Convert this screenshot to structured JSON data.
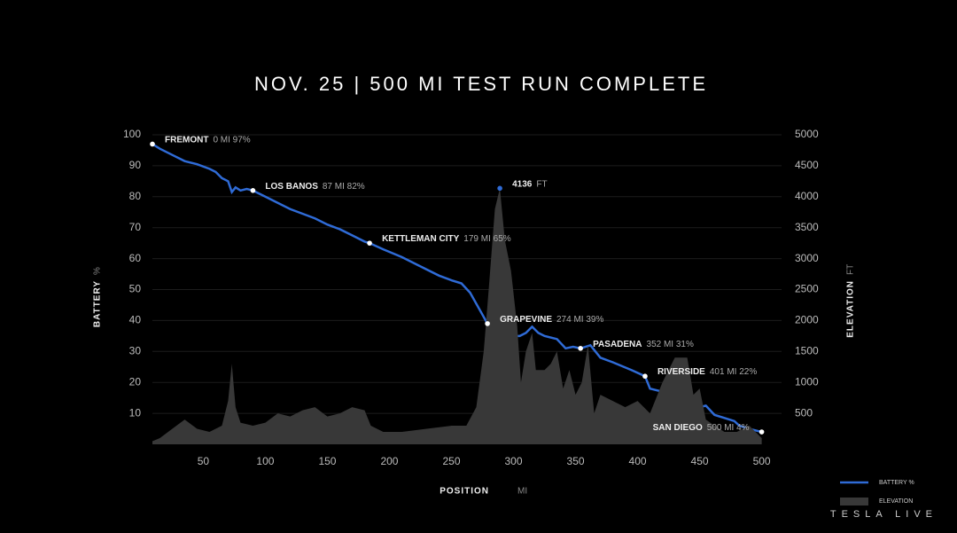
{
  "chart_data": {
    "type": "line",
    "title": "NOV. 25 | 500 MI TEST RUN COMPLETE",
    "xlabel": "POSITION",
    "xunit": "MI",
    "ylabel": "BATTERY",
    "yunit": "%",
    "y2label": "ELEVATION",
    "y2unit": "FT",
    "xlim": [
      9,
      516
    ],
    "xticks": [
      50,
      100,
      150,
      200,
      250,
      300,
      350,
      400,
      450,
      500
    ],
    "ylim": [
      0,
      100
    ],
    "yticks": [
      10,
      20,
      30,
      40,
      50,
      60,
      70,
      80,
      90,
      100
    ],
    "y2lim": [
      0,
      5000
    ],
    "y2ticks": [
      500,
      1000,
      1500,
      2000,
      2500,
      3000,
      3500,
      4000,
      4500,
      5000
    ],
    "grid": true,
    "series": [
      {
        "name": "BATTERY %",
        "color": "#2f6bd6",
        "kind": "line",
        "x": [
          9,
          15,
          25,
          35,
          45,
          55,
          60,
          65,
          70,
          73,
          76,
          80,
          85,
          90,
          100,
          110,
          120,
          130,
          140,
          150,
          160,
          170,
          180,
          184,
          195,
          210,
          225,
          240,
          250,
          258,
          265,
          272,
          279,
          283,
          286,
          290,
          295,
          305,
          310,
          315,
          320,
          325,
          335,
          342,
          348,
          354,
          362,
          370,
          380,
          395,
          406,
          410,
          425,
          432,
          440,
          445,
          455,
          462,
          470,
          478,
          482,
          490,
          500
        ],
        "values": [
          97,
          95.5,
          93.5,
          91.5,
          90.5,
          89,
          88,
          86,
          85,
          81.5,
          83,
          82,
          82.5,
          82,
          80,
          78,
          76,
          74.5,
          73,
          71,
          69.5,
          67.5,
          65.5,
          65,
          63,
          60.5,
          57.5,
          54.5,
          53,
          52,
          49,
          44,
          39,
          35,
          32.5,
          34,
          35,
          35,
          36,
          38,
          36,
          35,
          34,
          31,
          31.5,
          31,
          32,
          28,
          26.5,
          24,
          22,
          18,
          16.5,
          14.5,
          14.5,
          11.5,
          12.5,
          9.5,
          8.5,
          7.5,
          6,
          5,
          4
        ]
      },
      {
        "name": "ELEVATION",
        "color": "#383838",
        "kind": "area",
        "axis": "y2",
        "x": [
          9,
          15,
          25,
          35,
          45,
          55,
          65,
          70,
          73,
          76,
          80,
          90,
          100,
          110,
          120,
          130,
          140,
          150,
          160,
          170,
          180,
          185,
          195,
          210,
          230,
          250,
          262,
          270,
          276,
          280,
          285,
          289,
          293,
          298,
          303,
          306,
          310,
          315,
          318,
          325,
          330,
          335,
          340,
          345,
          350,
          355,
          360,
          365,
          370,
          380,
          390,
          400,
          410,
          420,
          430,
          440,
          445,
          450,
          455,
          462,
          470,
          480,
          490,
          500
        ],
        "values": [
          50,
          100,
          250,
          400,
          250,
          200,
          300,
          700,
          1300,
          600,
          350,
          300,
          350,
          500,
          450,
          550,
          600,
          450,
          500,
          600,
          550,
          300,
          200,
          200,
          250,
          300,
          300,
          600,
          1500,
          2500,
          3800,
          4136,
          3300,
          2800,
          1900,
          1000,
          1500,
          1800,
          1200,
          1200,
          1300,
          1500,
          900,
          1200,
          800,
          1000,
          1600,
          500,
          800,
          700,
          600,
          700,
          500,
          1000,
          1400,
          1400,
          800,
          900,
          400,
          300,
          200,
          200,
          300,
          100
        ]
      }
    ],
    "annotations": [
      {
        "label": "FREMONT",
        "detail": "0 MI  97%",
        "x": 9,
        "y": 97
      },
      {
        "label": "LOS BANOS",
        "detail": "87 MI  82%",
        "x": 90,
        "y": 82
      },
      {
        "label": "KETTLEMAN CITY",
        "detail": "179 MI  65%",
        "x": 184,
        "y": 65
      },
      {
        "label": "4136",
        "detail": "FT",
        "x": 289,
        "y": 4136,
        "axis": "y2"
      },
      {
        "label": "GRAPEVINE",
        "detail": "274 MI  39%",
        "x": 279,
        "y": 39
      },
      {
        "label": "PASADENA",
        "detail": "352 MI  31%",
        "x": 354,
        "y": 31
      },
      {
        "label": "RIVERSIDE",
        "detail": "401 MI  22%",
        "x": 406,
        "y": 22
      },
      {
        "label": "SAN DIEGO",
        "detail": "500 MI  4%",
        "x": 500,
        "y": 4
      }
    ]
  },
  "footer": "TESLA LIVE"
}
